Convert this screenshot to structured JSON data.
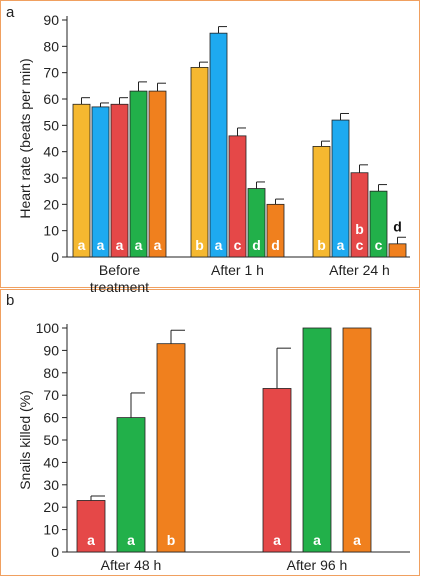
{
  "colors": {
    "yellow": "#f5b830",
    "blue": "#1eaaf0",
    "red": "#e54848",
    "green": "#22b04a",
    "orange": "#f0801e",
    "frame": "#f0a060"
  },
  "chart_data": [
    {
      "type": "bar",
      "panel_label": "a",
      "ylabel": "Heart rate (beats per min)",
      "ylim": [
        0,
        90
      ],
      "yticks": [
        0,
        10,
        20,
        30,
        40,
        50,
        60,
        70,
        80,
        90
      ],
      "groups": [
        {
          "label_lines": [
            "Before",
            "treatment"
          ],
          "bars": [
            {
              "value": 58,
              "err": 2.5,
              "color": "yellow",
              "letter": "a"
            },
            {
              "value": 57,
              "err": 1.5,
              "color": "blue",
              "letter": "a"
            },
            {
              "value": 58,
              "err": 2.5,
              "color": "red",
              "letter": "a"
            },
            {
              "value": 63,
              "err": 3.5,
              "color": "green",
              "letter": "a"
            },
            {
              "value": 63,
              "err": 3,
              "color": "orange",
              "letter": "a"
            }
          ]
        },
        {
          "label_lines": [
            "After 1 h"
          ],
          "bars": [
            {
              "value": 72,
              "err": 2,
              "color": "yellow",
              "letter": "b"
            },
            {
              "value": 85,
              "err": 2.5,
              "color": "blue",
              "letter": "a"
            },
            {
              "value": 46,
              "err": 3,
              "color": "red",
              "letter": "c"
            },
            {
              "value": 26,
              "err": 2.5,
              "color": "green",
              "letter": "d"
            },
            {
              "value": 20,
              "err": 2,
              "color": "orange",
              "letter": "d"
            }
          ]
        },
        {
          "label_lines": [
            "After 24 h"
          ],
          "bars": [
            {
              "value": 42,
              "err": 2,
              "color": "yellow",
              "letter": "b"
            },
            {
              "value": 52,
              "err": 2.5,
              "color": "blue",
              "letter": "a"
            },
            {
              "value": 32,
              "err": 3,
              "color": "red",
              "letter": "b c"
            },
            {
              "value": 25,
              "err": 2.5,
              "color": "green",
              "letter": "c"
            },
            {
              "value": 5,
              "err": 2.5,
              "color": "orange",
              "letter": "d"
            }
          ]
        }
      ]
    },
    {
      "type": "bar",
      "panel_label": "b",
      "ylabel": "Snails killed (%)",
      "ylim": [
        0,
        100
      ],
      "yticks": [
        0,
        10,
        20,
        30,
        40,
        50,
        60,
        70,
        80,
        90,
        100
      ],
      "groups": [
        {
          "label_lines": [
            "After 48 h"
          ],
          "bars": [
            {
              "value": 23,
              "err": 2,
              "color": "red",
              "letter": "a"
            },
            {
              "value": 60,
              "err": 11,
              "color": "green",
              "letter": "a"
            },
            {
              "value": 93,
              "err": 6,
              "color": "orange",
              "letter": "b"
            }
          ]
        },
        {
          "label_lines": [
            "After 96 h"
          ],
          "bars": [
            {
              "value": 73,
              "err": 18,
              "color": "red",
              "letter": "a"
            },
            {
              "value": 100,
              "err": 0,
              "color": "green",
              "letter": "a"
            },
            {
              "value": 100,
              "err": 0,
              "color": "orange",
              "letter": "a"
            }
          ]
        }
      ]
    }
  ]
}
